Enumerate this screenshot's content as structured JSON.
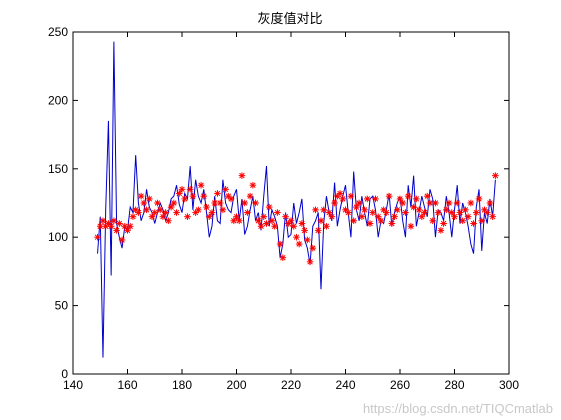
{
  "chart_data": {
    "type": "line",
    "title": "灰度值对比",
    "xlabel": "",
    "ylabel": "",
    "xlim": [
      140,
      300
    ],
    "ylim": [
      0,
      250
    ],
    "x_ticks": [
      "140",
      "160",
      "180",
      "200",
      "220",
      "240",
      "260",
      "280",
      "300"
    ],
    "y_ticks": [
      "0",
      "50",
      "100",
      "150",
      "200",
      "250"
    ],
    "grid": false,
    "legend": "none",
    "colors": {
      "line": "#0000cc",
      "markers": "#ff0000",
      "axes": "#000000"
    },
    "x_start": 149,
    "series": [
      {
        "style": "line",
        "values": [
          88,
          115,
          12,
          120,
          185,
          72,
          243,
          110,
          100,
          92,
          108,
          105,
          122,
          118,
          160,
          125,
          112,
          118,
          135,
          122,
          118,
          110,
          118,
          125,
          120,
          112,
          118,
          128,
          130,
          138,
          124,
          118,
          132,
          128,
          152,
          120,
          142,
          130,
          125,
          135,
          118,
          100,
          108,
          130,
          112,
          110,
          142,
          125,
          120,
          118,
          130,
          135,
          112,
          128,
          102,
          108,
          120,
          130,
          112,
          118,
          105,
          130,
          152,
          108,
          120,
          115,
          108,
          85,
          95,
          118,
          100,
          102,
          125,
          110,
          118,
          128,
          98,
          92,
          80,
          108,
          112,
          118,
          62,
          110,
          130,
          118,
          112,
          140,
          108,
          120,
          130,
          138,
          118,
          100,
          148,
          120,
          112,
          130,
          118,
          108,
          128,
          130,
          120,
          100,
          112,
          110,
          120,
          132,
          108,
          118,
          125,
          130,
          112,
          100,
          138,
          122,
          145,
          108,
          118,
          130,
          122,
          115,
          135,
          128,
          100,
          120,
          118,
          112,
          130,
          118,
          100,
          120,
          138,
          110,
          125,
          118,
          108,
          95,
          88,
          122,
          135,
          90,
          118,
          110,
          128,
          115,
          142
        ]
      },
      {
        "style": "markers",
        "values": [
          100,
          108,
          112,
          108,
          110,
          108,
          112,
          105,
          110,
          98,
          108,
          105,
          108,
          115,
          120,
          118,
          130,
          125,
          120,
          128,
          115,
          118,
          125,
          120,
          115,
          118,
          112,
          122,
          125,
          118,
          132,
          135,
          128,
          115,
          135,
          130,
          118,
          120,
          138,
          130,
          122,
          115,
          118,
          125,
          132,
          125,
          120,
          135,
          130,
          128,
          112,
          115,
          112,
          145,
          125,
          118,
          130,
          138,
          125,
          112,
          108,
          115,
          110,
          122,
          112,
          108,
          118,
          95,
          85,
          115,
          110,
          112,
          108,
          100,
          95,
          110,
          105,
          98,
          82,
          92,
          120,
          105,
          112,
          120,
          108,
          118,
          115,
          125,
          130,
          132,
          128,
          120,
          118,
          130,
          112,
          122,
          125,
          115,
          120,
          128,
          110,
          118,
          128,
          115,
          112,
          120,
          118,
          130,
          110,
          115,
          120,
          128,
          125,
          118,
          130,
          108,
          122,
          128,
          120,
          115,
          118,
          130,
          125,
          112,
          125,
          118,
          105,
          110,
          120,
          125,
          118,
          115,
          125,
          118,
          112,
          120,
          115,
          125,
          110,
          118,
          128,
          112,
          120,
          118,
          125,
          115,
          145
        ]
      }
    ]
  },
  "watermark": "https://blog.csdn.net/TIQCmatlab"
}
